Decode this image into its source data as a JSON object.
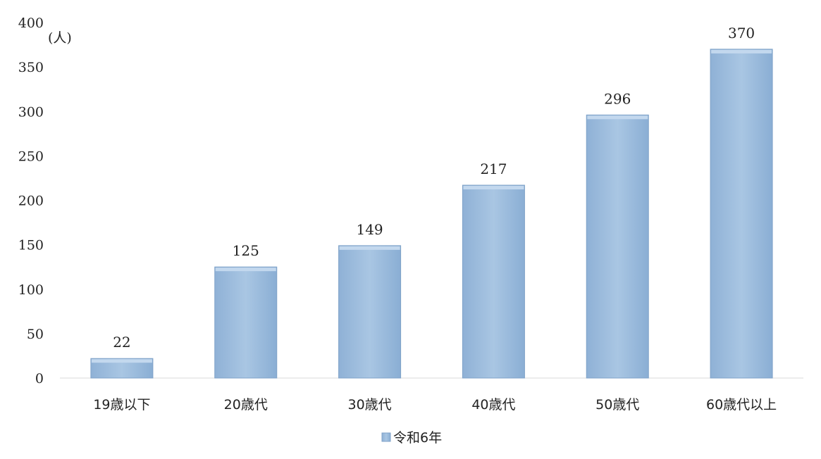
{
  "chart_data": {
    "type": "bar",
    "unit_label": "(人)",
    "categories": [
      "19歳以下",
      "20歳代",
      "30歳代",
      "40歳代",
      "50歳代",
      "60歳代以上"
    ],
    "series": [
      {
        "name": "令和6年",
        "values": [
          22,
          125,
          149,
          217,
          296,
          370
        ],
        "data_labels": [
          "22",
          "125",
          "149",
          "217",
          "296",
          "370"
        ]
      }
    ],
    "ylim": [
      0,
      400
    ],
    "yticks": [
      "0",
      "50",
      "100",
      "150",
      "200",
      "250",
      "300",
      "350",
      "400"
    ],
    "grid": false,
    "legend_position": "bottom-center",
    "colors": {
      "bar_fill": "#9dbcdc",
      "bar_top": "#c3d8ee",
      "bar_edge": "#7fa2c8",
      "baseline": "#d9d9d9"
    }
  }
}
